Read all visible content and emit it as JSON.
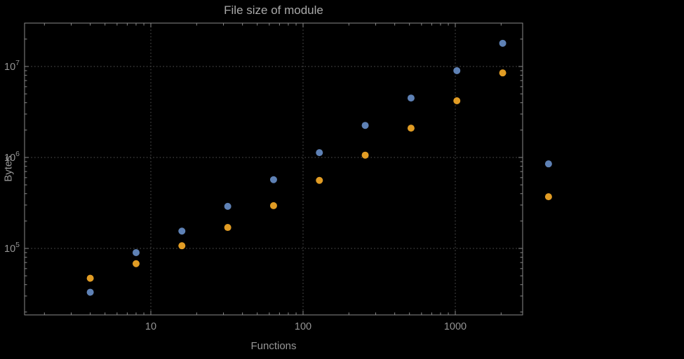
{
  "chart_data": {
    "type": "scatter",
    "title": "File size of module",
    "xlabel": "Functions",
    "ylabel": "Bytes",
    "x_scale": "log",
    "y_scale": "log",
    "grid": "dotted-major",
    "legend": "none",
    "background_color": "#000000",
    "frame_color": "#8a8a8a",
    "grid_color": "#585858",
    "text_color": "#949494",
    "x_ticks": [
      {
        "value": 10,
        "label": "10"
      },
      {
        "value": 100,
        "label": "100"
      },
      {
        "value": 1000,
        "label": "1000"
      }
    ],
    "y_ticks": [
      {
        "value": 100000,
        "base": "10",
        "exp": "5"
      },
      {
        "value": 1000000,
        "base": "10",
        "exp": "6"
      },
      {
        "value": 10000000,
        "base": "10",
        "exp": "7"
      }
    ],
    "x_range_frame": [
      1.5,
      2770
    ],
    "y_range_frame": [
      18600,
      30000000
    ],
    "series": [
      {
        "name": "blue-series",
        "color": "#5e81b5",
        "x": [
          4,
          8,
          16,
          32,
          64,
          128,
          256,
          512,
          1024,
          2048,
          4096
        ],
        "y": [
          33000,
          90000,
          155000,
          290000,
          570000,
          1130000,
          2250000,
          4500000,
          9000000,
          18000000,
          850000
        ]
      },
      {
        "name": "orange-series",
        "color": "#e19c24",
        "x": [
          4,
          8,
          16,
          32,
          64,
          128,
          256,
          512,
          1024,
          2048,
          4096
        ],
        "y": [
          47000,
          68000,
          107000,
          170000,
          295000,
          560000,
          1060000,
          2100000,
          4200000,
          8500000,
          370000
        ]
      }
    ]
  }
}
